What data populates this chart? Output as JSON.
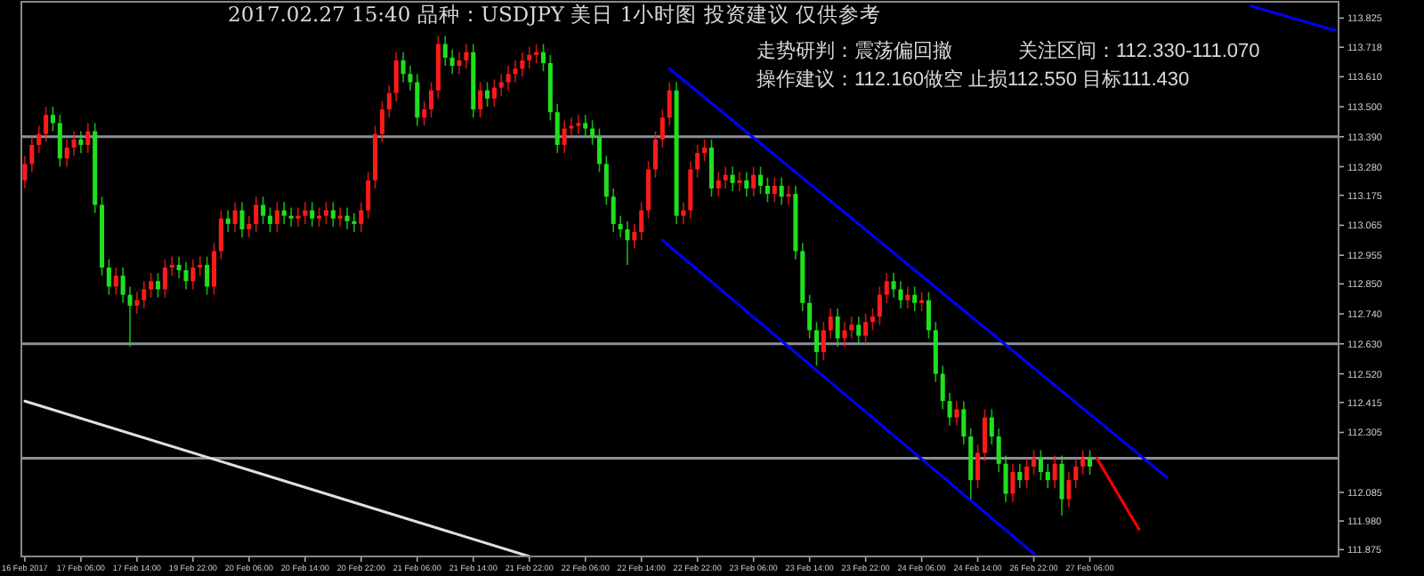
{
  "chart_data": {
    "type": "candlestick",
    "title": "2017.02.27 15:40   品种：USDJPY   美日 1小时图   投资建议 仅供参考",
    "annotations": [
      "走势研判：震荡偏回撤",
      "关注区间：112.330-111.070",
      "操作建议：112.160做空 止损112.550 目标111.430"
    ],
    "categories": [
      "16 Feb 2017",
      null,
      null,
      null,
      null,
      null,
      null,
      null,
      "17 Feb 06:00",
      null,
      null,
      null,
      null,
      null,
      null,
      null,
      "17 Feb 14:00",
      null,
      null,
      null,
      null,
      null,
      null,
      null,
      "19 Feb 22:00",
      null,
      null,
      null,
      null,
      null,
      null,
      null,
      "20 Feb 06:00",
      null,
      null,
      null,
      null,
      null,
      null,
      null,
      "20 Feb 14:00",
      null,
      null,
      null,
      null,
      null,
      null,
      null,
      "20 Feb 22:00",
      null,
      null,
      null,
      null,
      null,
      null,
      null,
      "21 Feb 06:00",
      null,
      null,
      null,
      null,
      null,
      null,
      null,
      "21 Feb 14:00",
      null,
      null,
      null,
      null,
      null,
      null,
      null,
      "21 Feb 22:00",
      null,
      null,
      null,
      null,
      null,
      null,
      null,
      "22 Feb 06:00",
      null,
      null,
      null,
      null,
      null,
      null,
      null,
      "22 Feb 14:00",
      null,
      null,
      null,
      null,
      null,
      null,
      null,
      "22 Feb 22:00",
      null,
      null,
      null,
      null,
      null,
      null,
      null,
      "23 Feb 06:00",
      null,
      null,
      null,
      null,
      null,
      null,
      null,
      "23 Feb 14:00",
      null,
      null,
      null,
      null,
      null,
      null,
      null,
      "23 Feb 22:00",
      null,
      null,
      null,
      null,
      null,
      null,
      null,
      "24 Feb 06:00",
      null,
      null,
      null,
      null,
      null,
      null,
      null,
      "24 Feb 14:00",
      null,
      null,
      null,
      null,
      null,
      null,
      null,
      "26 Feb 22:00",
      null,
      null,
      null,
      null,
      null,
      null,
      null,
      "27 Feb 06:00",
      null,
      null,
      null,
      null,
      null,
      null,
      null,
      null,
      null,
      null,
      null,
      null,
      null,
      null,
      null,
      null,
      null,
      null,
      null,
      null,
      null,
      null,
      null,
      null,
      null,
      null,
      null,
      null,
      null,
      null,
      null,
      null,
      null,
      null,
      null
    ],
    "colors": [
      "#ff1a1a",
      "#ff1a1a",
      "#ff1a1a",
      "#ff1a1a",
      "#1fe01f",
      "#1fe01f",
      "#ff1a1a",
      "#ff1a1a",
      "#1fe01f",
      "#ff1a1a",
      "#1fe01f",
      "#1fe01f",
      "#1fe01f",
      "#ff1a1a",
      "#1fe01f",
      "#1fe01f",
      "#ff1a1a",
      "#ff1a1a",
      "#ff1a1a",
      "#1fe01f",
      "#ff1a1a",
      "#ff1a1a",
      "#1fe01f",
      "#1fe01f",
      "#ff1a1a",
      "#ff1a1a",
      "#1fe01f",
      "#ff1a1a",
      "#ff1a1a",
      "#1fe01f",
      "#ff1a1a",
      "#1fe01f",
      "#ff1a1a",
      "#ff1a1a",
      "#1fe01f",
      "#1fe01f",
      "#ff1a1a",
      "#1fe01f",
      "#1fe01f",
      "#ff1a1a",
      "#ff1a1a",
      "#1fe01f",
      "#ff1a1a",
      "#ff1a1a",
      "#1fe01f",
      "#ff1a1a",
      "#1fe01f",
      "#1fe01f",
      "#ff1a1a",
      "#ff1a1a",
      "#ff1a1a",
      "#ff1a1a",
      "#ff1a1a",
      "#ff1a1a",
      "#1fe01f",
      "#1fe01f",
      "#1fe01f",
      "#ff1a1a",
      "#ff1a1a",
      "#ff1a1a",
      "#1fe01f",
      "#1fe01f",
      "#ff1a1a",
      "#ff1a1a",
      "#1fe01f",
      "#ff1a1a",
      "#1fe01f",
      "#ff1a1a",
      "#ff1a1a",
      "#ff1a1a",
      "#ff1a1a",
      "#ff1a1a",
      "#ff1a1a",
      "#ff1a1a",
      "#1fe01f",
      "#1fe01f",
      "#1fe01f",
      "#ff1a1a",
      "#ff1a1a",
      "#ff1a1a",
      "#1fe01f",
      "#1fe01f",
      "#1fe01f",
      "#1fe01f",
      "#1fe01f",
      "#1fe01f",
      "#1fe01f",
      "#ff1a1a",
      "#ff1a1a",
      "#ff1a1a",
      "#ff1a1a",
      "#ff1a1a",
      "#ff1a1a",
      "#1fe01f",
      "#ff1a1a",
      "#ff1a1a",
      "#ff1a1a",
      "#ff1a1a",
      "#1fe01f",
      "#ff1a1a",
      "#ff1a1a",
      "#1fe01f",
      "#ff1a1a",
      "#1fe01f",
      "#ff1a1a",
      "#1fe01f",
      "#1fe01f",
      "#ff1a1a",
      "#1fe01f",
      "#ff1a1a",
      "#1fe01f",
      "#1fe01f",
      "#1fe01f",
      "#1fe01f",
      "#ff1a1a",
      "#ff1a1a",
      "#1fe01f",
      "#ff1a1a",
      "#ff1a1a",
      "#1fe01f",
      "#ff1a1a",
      "#ff1a1a",
      "#ff1a1a",
      "#ff1a1a",
      "#1fe01f",
      "#1fe01f",
      "#ff1a1a",
      "#1fe01f",
      "#ff1a1a",
      "#1fe01f",
      "#1fe01f",
      "#1fe01f",
      "#1fe01f",
      "#ff1a1a",
      "#1fe01f",
      "#1fe01f",
      "#ff1a1a",
      "#ff1a1a",
      "#1fe01f",
      "#1fe01f",
      "#1fe01f",
      "#ff1a1a",
      "#1fe01f",
      "#ff1a1a",
      "#ff1a1a",
      "#1fe01f",
      "#1fe01f",
      "#ff1a1a",
      "#1fe01f",
      "#ff1a1a",
      "#ff1a1a",
      "#ff1a1a",
      "#1fe01f",
      null,
      null,
      null,
      null,
      null,
      null,
      null,
      null,
      null,
      null,
      null,
      null,
      null,
      null,
      null,
      null,
      null,
      null,
      null,
      null,
      null,
      null,
      null,
      null,
      null,
      null,
      null,
      null,
      null,
      null,
      null,
      null,
      null,
      null,
      null
    ],
    "ohlc": [
      [
        113.23,
        113.32,
        113.2,
        113.29
      ],
      [
        113.29,
        113.39,
        113.26,
        113.36
      ],
      [
        113.36,
        113.43,
        113.33,
        113.4
      ],
      [
        113.4,
        113.5,
        113.37,
        113.47
      ],
      [
        113.47,
        113.5,
        113.41,
        113.44
      ],
      [
        113.44,
        113.47,
        113.28,
        113.31
      ],
      [
        113.31,
        113.38,
        113.28,
        113.35
      ],
      [
        113.35,
        113.41,
        113.32,
        113.38
      ],
      [
        113.38,
        113.41,
        113.33,
        113.36
      ],
      [
        113.36,
        113.44,
        113.33,
        113.41
      ],
      [
        113.41,
        113.44,
        113.11,
        113.14
      ],
      [
        113.14,
        113.17,
        112.88,
        112.91
      ],
      [
        112.91,
        112.94,
        112.81,
        112.84
      ],
      [
        112.84,
        112.91,
        112.81,
        112.88
      ],
      [
        112.88,
        112.91,
        112.78,
        112.81
      ],
      [
        112.81,
        112.84,
        112.62,
        112.77
      ],
      [
        112.77,
        112.82,
        112.74,
        112.79
      ],
      [
        112.79,
        112.86,
        112.76,
        112.83
      ],
      [
        112.83,
        112.89,
        112.8,
        112.86
      ],
      [
        112.86,
        112.89,
        112.8,
        112.83
      ],
      [
        112.83,
        112.94,
        112.8,
        112.91
      ],
      [
        112.91,
        112.95,
        112.88,
        112.92
      ],
      [
        112.92,
        112.95,
        112.87,
        112.9
      ],
      [
        112.9,
        112.93,
        112.83,
        112.86
      ],
      [
        112.86,
        112.94,
        112.83,
        112.91
      ],
      [
        112.91,
        112.95,
        112.88,
        112.92
      ],
      [
        112.92,
        112.95,
        112.81,
        112.84
      ],
      [
        112.84,
        113.0,
        112.81,
        112.97
      ],
      [
        112.97,
        113.12,
        112.94,
        113.09
      ],
      [
        113.09,
        113.12,
        113.04,
        113.07
      ],
      [
        113.07,
        113.15,
        113.04,
        113.12
      ],
      [
        113.12,
        113.15,
        113.02,
        113.05
      ],
      [
        113.05,
        113.1,
        113.02,
        113.07
      ],
      [
        113.07,
        113.17,
        113.04,
        113.14
      ],
      [
        113.14,
        113.17,
        113.07,
        113.1
      ],
      [
        113.1,
        113.13,
        113.04,
        113.07
      ],
      [
        113.07,
        113.15,
        113.04,
        113.12
      ],
      [
        113.12,
        113.15,
        113.07,
        113.1
      ],
      [
        113.1,
        113.13,
        113.06,
        113.09
      ],
      [
        113.09,
        113.13,
        113.06,
        113.1
      ],
      [
        113.1,
        113.15,
        113.07,
        113.12
      ],
      [
        113.12,
        113.15,
        113.06,
        113.09
      ],
      [
        113.09,
        113.13,
        113.06,
        113.1
      ],
      [
        113.1,
        113.15,
        113.07,
        113.12
      ],
      [
        113.12,
        113.15,
        113.06,
        113.09
      ],
      [
        113.09,
        113.13,
        113.06,
        113.1
      ],
      [
        113.1,
        113.13,
        113.05,
        113.08
      ],
      [
        113.08,
        113.11,
        113.04,
        113.07
      ],
      [
        113.07,
        113.15,
        113.04,
        113.12
      ],
      [
        113.12,
        113.26,
        113.09,
        113.23
      ],
      [
        113.23,
        113.43,
        113.2,
        113.4
      ],
      [
        113.4,
        113.52,
        113.37,
        113.49
      ],
      [
        113.49,
        113.58,
        113.46,
        113.55
      ],
      [
        113.55,
        113.7,
        113.52,
        113.67
      ],
      [
        113.67,
        113.7,
        113.59,
        113.62
      ],
      [
        113.62,
        113.65,
        113.56,
        113.59
      ],
      [
        113.59,
        113.62,
        113.43,
        113.46
      ],
      [
        113.46,
        113.52,
        113.43,
        113.49
      ],
      [
        113.49,
        113.59,
        113.46,
        113.56
      ],
      [
        113.56,
        113.76,
        113.53,
        113.73
      ],
      [
        113.73,
        113.76,
        113.65,
        113.68
      ],
      [
        113.68,
        113.71,
        113.62,
        113.65
      ],
      [
        113.65,
        113.7,
        113.62,
        113.67
      ],
      [
        113.67,
        113.73,
        113.64,
        113.7
      ],
      [
        113.7,
        113.73,
        113.46,
        113.49
      ],
      [
        113.49,
        113.59,
        113.46,
        113.56
      ],
      [
        113.56,
        113.59,
        113.5,
        113.53
      ],
      [
        113.53,
        113.6,
        113.5,
        113.57
      ],
      [
        113.57,
        113.62,
        113.54,
        113.59
      ],
      [
        113.59,
        113.65,
        113.56,
        113.62
      ],
      [
        113.62,
        113.67,
        113.59,
        113.64
      ],
      [
        113.64,
        113.7,
        113.61,
        113.67
      ],
      [
        113.67,
        113.72,
        113.64,
        113.69
      ],
      [
        113.69,
        113.73,
        113.66,
        113.7
      ],
      [
        113.7,
        113.73,
        113.63,
        113.66
      ],
      [
        113.66,
        113.69,
        113.45,
        113.48
      ],
      [
        113.48,
        113.51,
        113.33,
        113.36
      ],
      [
        113.36,
        113.45,
        113.33,
        113.42
      ],
      [
        113.42,
        113.46,
        113.39,
        113.43
      ],
      [
        113.43,
        113.47,
        113.4,
        113.44
      ],
      [
        113.44,
        113.47,
        113.39,
        113.42
      ],
      [
        113.42,
        113.45,
        113.36,
        113.39
      ],
      [
        113.39,
        113.42,
        113.26,
        113.29
      ],
      [
        113.29,
        113.32,
        113.14,
        113.17
      ],
      [
        113.17,
        113.2,
        113.04,
        113.07
      ],
      [
        113.07,
        113.1,
        113.02,
        113.05
      ],
      [
        113.05,
        113.08,
        112.92,
        113.01
      ],
      [
        113.01,
        113.07,
        112.98,
        113.04
      ],
      [
        113.04,
        113.15,
        113.01,
        113.12
      ],
      [
        113.12,
        113.3,
        113.09,
        113.27
      ],
      [
        113.27,
        113.41,
        113.24,
        113.38
      ],
      [
        113.38,
        113.49,
        113.35,
        113.46
      ],
      [
        113.46,
        113.59,
        113.43,
        113.56
      ],
      [
        113.56,
        113.59,
        113.07,
        113.1
      ],
      [
        113.1,
        113.15,
        113.07,
        113.12
      ],
      [
        113.12,
        113.3,
        113.09,
        113.27
      ],
      [
        113.27,
        113.36,
        113.24,
        113.33
      ],
      [
        113.33,
        113.38,
        113.3,
        113.35
      ],
      [
        113.35,
        113.38,
        113.17,
        113.2
      ],
      [
        113.2,
        113.26,
        113.17,
        113.23
      ],
      [
        113.23,
        113.28,
        113.2,
        113.25
      ],
      [
        113.25,
        113.28,
        113.19,
        113.22
      ],
      [
        113.22,
        113.26,
        113.19,
        113.23
      ],
      [
        113.23,
        113.26,
        113.17,
        113.2
      ],
      [
        113.2,
        113.28,
        113.17,
        113.25
      ],
      [
        113.25,
        113.28,
        113.18,
        113.21
      ],
      [
        113.21,
        113.24,
        113.15,
        113.18
      ],
      [
        113.18,
        113.24,
        113.15,
        113.21
      ],
      [
        113.21,
        113.24,
        113.14,
        113.17
      ],
      [
        113.17,
        113.21,
        113.14,
        113.18
      ],
      [
        113.18,
        113.21,
        112.94,
        112.97
      ],
      [
        112.97,
        113.0,
        112.75,
        112.78
      ],
      [
        112.78,
        112.81,
        112.65,
        112.68
      ],
      [
        112.68,
        112.71,
        112.55,
        112.6
      ],
      [
        112.6,
        112.71,
        112.57,
        112.68
      ],
      [
        112.68,
        112.76,
        112.65,
        112.73
      ],
      [
        112.73,
        112.76,
        112.62,
        112.65
      ],
      [
        112.65,
        112.71,
        112.62,
        112.68
      ],
      [
        112.68,
        112.73,
        112.65,
        112.7
      ],
      [
        112.7,
        112.73,
        112.63,
        112.66
      ],
      [
        112.66,
        112.74,
        112.63,
        112.71
      ],
      [
        112.71,
        112.76,
        112.68,
        112.73
      ],
      [
        112.73,
        112.84,
        112.7,
        112.81
      ],
      [
        112.81,
        112.89,
        112.78,
        112.86
      ],
      [
        112.86,
        112.89,
        112.8,
        112.83
      ],
      [
        112.83,
        112.86,
        112.76,
        112.79
      ],
      [
        112.79,
        112.84,
        112.76,
        112.81
      ],
      [
        112.81,
        112.84,
        112.75,
        112.78
      ],
      [
        112.78,
        112.82,
        112.75,
        112.79
      ],
      [
        112.79,
        112.82,
        112.65,
        112.68
      ],
      [
        112.68,
        112.71,
        112.49,
        112.52
      ],
      [
        112.52,
        112.55,
        112.39,
        112.42
      ],
      [
        112.42,
        112.45,
        112.33,
        112.36
      ],
      [
        112.36,
        112.42,
        112.33,
        112.39
      ],
      [
        112.39,
        112.42,
        112.26,
        112.29
      ],
      [
        112.29,
        112.32,
        112.06,
        112.13
      ],
      [
        112.13,
        112.26,
        112.1,
        112.23
      ],
      [
        112.23,
        112.39,
        112.2,
        112.36
      ],
      [
        112.36,
        112.39,
        112.26,
        112.29
      ],
      [
        112.29,
        112.32,
        112.16,
        112.19
      ],
      [
        112.19,
        112.22,
        112.05,
        112.08
      ],
      [
        112.08,
        112.19,
        112.05,
        112.16
      ],
      [
        112.16,
        112.19,
        112.1,
        112.13
      ],
      [
        112.13,
        112.21,
        112.1,
        112.18
      ],
      [
        112.18,
        112.24,
        112.15,
        112.21
      ],
      [
        112.21,
        112.24,
        112.13,
        112.16
      ],
      [
        112.16,
        112.19,
        112.1,
        112.13
      ],
      [
        112.13,
        112.22,
        112.1,
        112.19
      ],
      [
        112.19,
        112.22,
        112.0,
        112.06
      ],
      [
        112.06,
        112.16,
        112.03,
        112.13
      ],
      [
        112.13,
        112.21,
        112.1,
        112.18
      ],
      [
        112.18,
        112.24,
        112.15,
        112.21
      ],
      [
        112.21,
        112.24,
        112.15,
        112.18
      ],
      null,
      null,
      null,
      null,
      null,
      null,
      null,
      null,
      null,
      null,
      null,
      null,
      null,
      null,
      null,
      null,
      null,
      null,
      null,
      null,
      null,
      null,
      null,
      null,
      null,
      null,
      null,
      null,
      null,
      null,
      null,
      null,
      null,
      null,
      null
    ],
    "series": [
      {
        "type": "line",
        "color": "#0000ff",
        "values": [
          null,
          null,
          null,
          null,
          null,
          null,
          null,
          null,
          null,
          null,
          null,
          null,
          null,
          null,
          null,
          null,
          null,
          null,
          null,
          null,
          null,
          null,
          null,
          null,
          null,
          null,
          null,
          null,
          null,
          null,
          null,
          null,
          null,
          null,
          null,
          null,
          null,
          null,
          null,
          null,
          null,
          null,
          null,
          null,
          null,
          null,
          null,
          null,
          null,
          null,
          null,
          null,
          null,
          null,
          null,
          null,
          null,
          null,
          null,
          null,
          null,
          null,
          null,
          null,
          null,
          null,
          null,
          null,
          null,
          null,
          null,
          null,
          null,
          null,
          null,
          null,
          null,
          null,
          null,
          null,
          null,
          null,
          null,
          null,
          null,
          null,
          null,
          null,
          null,
          null,
          null,
          null,
          113.64,
          null,
          null,
          null,
          null,
          null,
          null,
          null,
          null,
          null,
          null,
          null,
          null,
          null,
          null,
          null,
          null,
          null,
          null,
          null,
          null,
          null,
          null,
          null,
          null,
          null,
          null,
          null,
          null,
          null,
          null,
          null,
          null,
          null,
          null,
          null,
          null,
          null,
          null,
          null,
          null,
          null,
          null,
          null,
          null,
          null,
          null,
          null,
          null,
          null,
          null,
          null,
          null,
          null,
          null,
          null,
          null,
          null,
          null,
          null,
          null,
          null,
          null,
          null,
          null,
          null,
          null,
          null,
          null,
          null,
          null,
          112.14,
          null,
          null,
          null,
          null,
          null,
          null,
          null,
          null,
          null,
          null,
          null,
          null,
          null,
          null,
          null,
          null,
          null,
          null,
          null,
          null,
          null,
          null,
          null,
          null
        ]
      },
      {
        "type": "line",
        "color": "#0000ff",
        "values": [
          null,
          null,
          null,
          null,
          null,
          null,
          null,
          null,
          null,
          null,
          null,
          null,
          null,
          null,
          null,
          null,
          null,
          null,
          null,
          null,
          null,
          null,
          null,
          null,
          null,
          null,
          null,
          null,
          null,
          null,
          null,
          null,
          null,
          null,
          null,
          null,
          null,
          null,
          null,
          null,
          null,
          null,
          null,
          null,
          null,
          null,
          null,
          null,
          null,
          null,
          null,
          null,
          null,
          null,
          null,
          null,
          null,
          null,
          null,
          null,
          null,
          null,
          null,
          null,
          null,
          null,
          null,
          null,
          null,
          null,
          null,
          null,
          null,
          null,
          null,
          null,
          null,
          null,
          null,
          null,
          null,
          null,
          null,
          null,
          null,
          null,
          null,
          null,
          null,
          null,
          null,
          113.01,
          null,
          null,
          null,
          null,
          null,
          null,
          null,
          null,
          null,
          null,
          null,
          null,
          null,
          null,
          null,
          null,
          null,
          null,
          null,
          null,
          null,
          null,
          null,
          null,
          null,
          null,
          null,
          null,
          null,
          null,
          null,
          null,
          null,
          null,
          null,
          null,
          null,
          null,
          null,
          null,
          null,
          null,
          null,
          null,
          null,
          null,
          null,
          null,
          null,
          null,
          null,
          null,
          111.86,
          null,
          null,
          null,
          null,
          null,
          null,
          null,
          null,
          null,
          null,
          null,
          null,
          null,
          null,
          null,
          null,
          null,
          null,
          null,
          null,
          null,
          null,
          null,
          null,
          null,
          null,
          null,
          null,
          null,
          null,
          null,
          null,
          null,
          null,
          null,
          null,
          null,
          null,
          null,
          null,
          null,
          null,
          null
        ]
      },
      {
        "type": "line",
        "color": "#0000ff",
        "values": [
          null,
          null,
          null,
          null,
          null,
          null,
          null,
          null,
          null,
          null,
          null,
          null,
          null,
          null,
          null,
          null,
          null,
          null,
          null,
          null,
          null,
          null,
          null,
          null,
          null,
          null,
          null,
          null,
          null,
          null,
          null,
          null,
          null,
          null,
          null,
          null,
          null,
          null,
          null,
          null,
          null,
          null,
          null,
          null,
          null,
          null,
          null,
          null,
          null,
          null,
          null,
          null,
          null,
          null,
          null,
          null,
          null,
          null,
          null,
          null,
          null,
          null,
          null,
          null,
          null,
          null,
          null,
          null,
          null,
          null,
          null,
          null,
          null,
          null,
          null,
          null,
          null,
          null,
          null,
          null,
          null,
          null,
          null,
          null,
          null,
          null,
          null,
          null,
          null,
          null,
          null,
          null,
          null,
          null,
          null,
          null,
          null,
          null,
          null,
          null,
          null,
          null,
          null,
          null,
          null,
          null,
          null,
          null,
          null,
          null,
          null,
          null,
          null,
          null,
          null,
          null,
          null,
          null,
          null,
          null,
          null,
          null,
          null,
          null,
          null,
          null,
          null,
          null,
          null,
          null,
          null,
          null,
          null,
          null,
          null,
          null,
          null,
          null,
          null,
          null,
          null,
          null,
          null,
          null,
          null,
          null,
          null,
          null,
          null,
          null,
          null,
          null,
          null,
          null,
          null,
          null,
          null,
          null,
          null,
          null,
          null,
          null,
          null,
          null,
          null,
          null,
          null,
          null,
          null,
          null,
          null,
          null,
          null,
          null,
          null,
          113.87,
          null,
          null,
          null,
          null,
          null,
          null,
          null,
          null,
          null,
          null,
          null,
          113.78
        ]
      },
      {
        "type": "line",
        "color": "#e0e0e0",
        "values": [
          112.42,
          null,
          null,
          null,
          null,
          null,
          null,
          null,
          null,
          null,
          null,
          null,
          null,
          null,
          null,
          null,
          null,
          null,
          null,
          null,
          null,
          null,
          null,
          null,
          null,
          null,
          null,
          null,
          null,
          null,
          null,
          null,
          null,
          null,
          null,
          null,
          null,
          null,
          null,
          null,
          null,
          null,
          null,
          null,
          null,
          null,
          null,
          null,
          null,
          null,
          null,
          null,
          null,
          null,
          null,
          null,
          null,
          null,
          null,
          null,
          null,
          null,
          null,
          null,
          null,
          null,
          null,
          null,
          null,
          null,
          null,
          null,
          111.85,
          null,
          null,
          null,
          null,
          null,
          null,
          null,
          null,
          null,
          null,
          null,
          null,
          null,
          null,
          null,
          null,
          null,
          null,
          null,
          null,
          null,
          null,
          null,
          null,
          null,
          null,
          null,
          null,
          null,
          null,
          null,
          null,
          null,
          null,
          null,
          null,
          null,
          null,
          null,
          null,
          null,
          null,
          null,
          null,
          null,
          null,
          null,
          null,
          null,
          null,
          null,
          null,
          null,
          null,
          null,
          null,
          null,
          null,
          null,
          null,
          null,
          null,
          null,
          null,
          null,
          null,
          null,
          null,
          null,
          null,
          null,
          null,
          null,
          null,
          null,
          null,
          null,
          null,
          null,
          null,
          null,
          null,
          null,
          null,
          null,
          null,
          null,
          null,
          null,
          null,
          null,
          null,
          null,
          null,
          null,
          null,
          null,
          null,
          null,
          null,
          null,
          null,
          null,
          null,
          null,
          null,
          null,
          null,
          null,
          null,
          null,
          null,
          null,
          null,
          null
        ]
      },
      {
        "type": "line",
        "color": "#ff0000",
        "values": [
          null,
          null,
          null,
          null,
          null,
          null,
          null,
          null,
          null,
          null,
          null,
          null,
          null,
          null,
          null,
          null,
          null,
          null,
          null,
          null,
          null,
          null,
          null,
          null,
          null,
          null,
          null,
          null,
          null,
          null,
          null,
          null,
          null,
          null,
          null,
          null,
          null,
          null,
          null,
          null,
          null,
          null,
          null,
          null,
          null,
          null,
          null,
          null,
          null,
          null,
          null,
          null,
          null,
          null,
          null,
          null,
          null,
          null,
          null,
          null,
          null,
          null,
          null,
          null,
          null,
          null,
          null,
          null,
          null,
          null,
          null,
          null,
          null,
          null,
          null,
          null,
          null,
          null,
          null,
          null,
          null,
          null,
          null,
          null,
          null,
          null,
          null,
          null,
          null,
          null,
          null,
          null,
          null,
          null,
          null,
          null,
          null,
          null,
          null,
          null,
          null,
          null,
          null,
          null,
          null,
          null,
          null,
          null,
          null,
          null,
          null,
          null,
          null,
          null,
          null,
          null,
          null,
          null,
          null,
          null,
          null,
          null,
          null,
          null,
          null,
          null,
          null,
          null,
          null,
          null,
          null,
          null,
          null,
          null,
          null,
          null,
          null,
          null,
          null,
          null,
          null,
          null,
          null,
          null,
          null,
          null,
          null,
          null,
          null,
          null,
          null,
          null,
          null,
          112.21,
          null,
          null,
          null,
          null,
          null,
          111.95,
          null,
          null,
          null,
          null,
          null,
          null,
          null,
          null,
          null,
          null,
          null,
          null,
          null,
          null,
          null,
          null,
          null,
          null,
          null,
          null,
          null,
          null,
          null,
          null,
          null,
          null,
          null,
          null
        ]
      }
    ],
    "ref_lines": [
      {
        "axis": "y",
        "value": 113.39,
        "color": "#8a909a"
      },
      {
        "axis": "y",
        "value": 112.63,
        "color": "#8a909a"
      },
      {
        "axis": "y",
        "value": 112.21,
        "color": "#8a909a"
      }
    ],
    "ylim": [
      111.85,
      113.885
    ],
    "yticks": [
      {
        "value": 113.825,
        "label": "113.825"
      },
      {
        "value": 113.718,
        "label": "113.718"
      },
      {
        "value": 113.61,
        "label": "113.610"
      },
      {
        "value": 113.5,
        "label": "113.500"
      },
      {
        "value": 113.39,
        "label": "113.390"
      },
      {
        "value": 113.28,
        "label": "113.280"
      },
      {
        "value": 113.175,
        "label": "113.175"
      },
      {
        "value": 113.065,
        "label": "113.065"
      },
      {
        "value": 112.955,
        "label": "112.955"
      },
      {
        "value": 112.85,
        "label": "112.850"
      },
      {
        "value": 112.74,
        "label": "112.740"
      },
      {
        "value": 112.63,
        "label": "112.630"
      },
      {
        "value": 112.52,
        "label": "112.520"
      },
      {
        "value": 112.415,
        "label": "112.415"
      },
      {
        "value": 112.305,
        "label": "112.305"
      },
      {
        "value": 112.085,
        "label": "112.085"
      },
      {
        "value": 111.98,
        "label": "111.980"
      },
      {
        "value": 111.875,
        "label": "111.875"
      }
    ]
  }
}
